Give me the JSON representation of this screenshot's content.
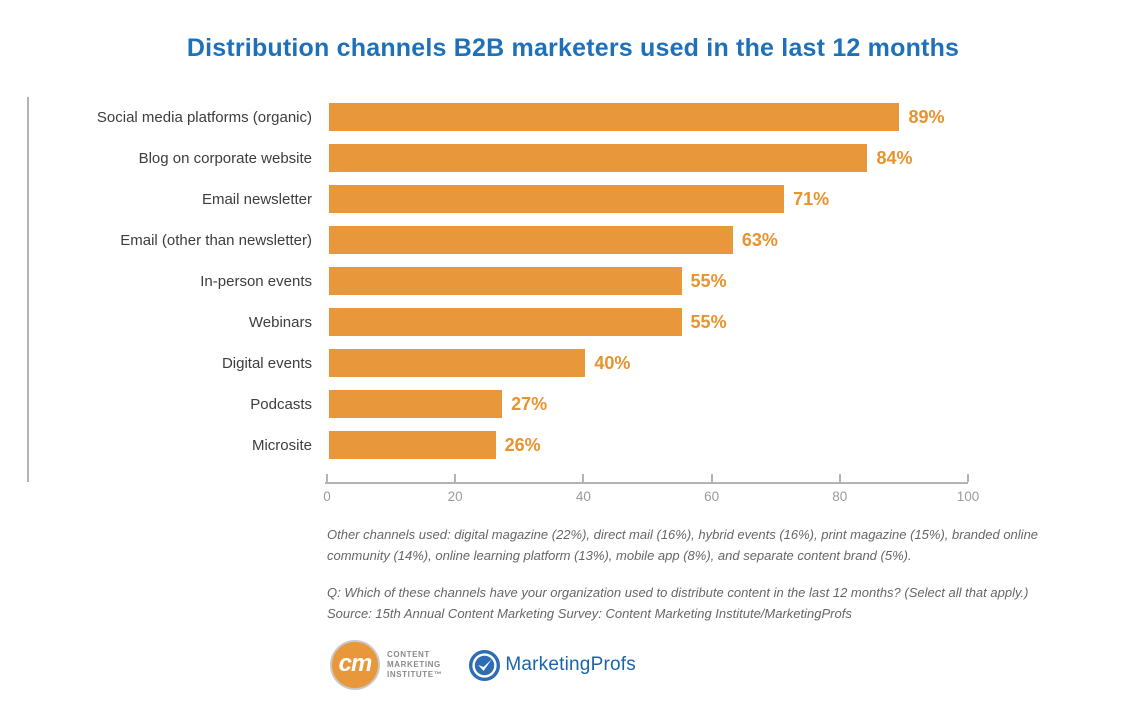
{
  "chart_data": {
    "type": "bar",
    "orientation": "horizontal",
    "title": "Distribution channels B2B marketers used in the last 12 months",
    "title_color": "#1E71B8",
    "categories": [
      "Social media platforms (organic)",
      "Blog on corporate website",
      "Email newsletter",
      "Email (other than newsletter)",
      "In-person events",
      "Webinars",
      "Digital events",
      "Podcasts",
      "Microsite"
    ],
    "values": [
      89,
      84,
      71,
      63,
      55,
      55,
      40,
      27,
      26
    ],
    "value_labels": [
      "89%",
      "84%",
      "71%",
      "63%",
      "55%",
      "55%",
      "40%",
      "27%",
      "26%"
    ],
    "xlabel": "",
    "ylabel": "",
    "xlim": [
      0,
      100
    ],
    "x_ticks": [
      0,
      20,
      40,
      60,
      80,
      100
    ],
    "bar_color": "#E8983A",
    "value_label_color": "#E8932E",
    "grid": false,
    "legend": "none"
  },
  "footnotes": {
    "other_channels": "Other channels used: digital magazine (22%), direct mail (16%), hybrid events (16%), print magazine (15%), branded online community (14%), online learning platform (13%), mobile app (8%), and separate content brand (5%).",
    "question": "Q: Which of these channels have your organization used to distribute content in the last 12 months? (Select all that apply.)",
    "source": "Source: 15th Annual Content Marketing Survey: Content Marketing Institute/MarketingProfs"
  },
  "logos": {
    "cmi": {
      "monogram": "cm",
      "line1": "CONTENT",
      "line2": "MARKETING",
      "line3": "INSTITUTE™",
      "circle_color": "#E8983A"
    },
    "marketingprofs": {
      "text": "MarketingProfs",
      "circle_color": "#2E6DB4"
    }
  }
}
